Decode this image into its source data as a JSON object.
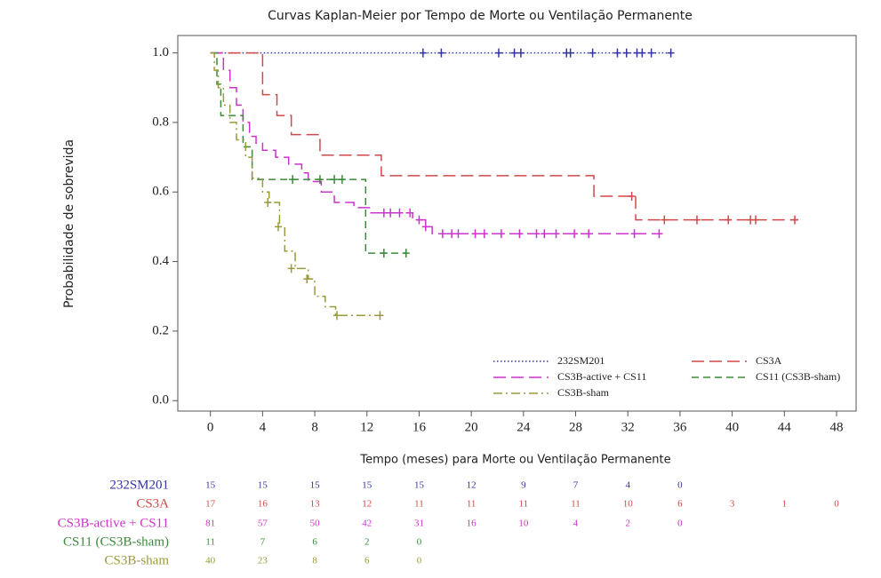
{
  "chart_data": {
    "type": "step",
    "title": "Curvas Kaplan-Meier por Tempo de Morte ou Ventilação Permanente",
    "x_label": "Tempo (meses) para Morte ou Ventilação Permanente",
    "y_label": "Probabilidade de sobrevida",
    "xlim": [
      -2.5,
      49.5
    ],
    "ylim": [
      -0.03,
      1.05
    ],
    "xticks": [
      0,
      4,
      8,
      12,
      16,
      20,
      24,
      28,
      32,
      36,
      40,
      44,
      48
    ],
    "yticks": [
      {
        "value": 0,
        "label": "0.0"
      },
      0.2,
      0.4,
      0.6,
      0.8,
      {
        "value": 1,
        "label": "1.0"
      }
    ],
    "series": [
      {
        "name": "232SM201",
        "color": "#3434a0",
        "style": "dotted",
        "x": [
          0,
          35.3
        ],
        "values": [
          1,
          1
        ],
        "censored_x": [
          16.3,
          17.7,
          22.1,
          23.3,
          23.8,
          27.3,
          27.6,
          29.3,
          31.2,
          31.9,
          32.7,
          33.1,
          33.8,
          35.3
        ],
        "censored_y": [
          1,
          1,
          1,
          1,
          1,
          1,
          1,
          1,
          1,
          1,
          1,
          1,
          1,
          1
        ],
        "at_risk": [
          15,
          15,
          15,
          15,
          15,
          12,
          9,
          7,
          4,
          0
        ]
      },
      {
        "name": "CS3A",
        "color": "#d04848",
        "style": "longdash",
        "x": [
          0,
          4,
          5.1,
          6.2,
          8.4,
          13.1,
          29.4,
          32.6,
          45
        ],
        "values": [
          1,
          0.88,
          0.82,
          0.765,
          0.706,
          0.647,
          0.588,
          0.52,
          0.52
        ],
        "censored_x": [
          32.3,
          34.8,
          37.3,
          39.7,
          41.4,
          41.8,
          44.8
        ],
        "censored_y": [
          0.588,
          0.52,
          0.52,
          0.52,
          0.52,
          0.52,
          0.52
        ],
        "at_risk": [
          17,
          16,
          13,
          12,
          11,
          11,
          11,
          11,
          10,
          6,
          3,
          1,
          0
        ]
      },
      {
        "name": "CS3B-active + CS11",
        "color": "#cc33cc",
        "style": "longdash",
        "x": [
          0,
          1,
          1.5,
          2,
          2.5,
          3,
          3.5,
          4,
          5,
          6,
          7,
          7.5,
          8.5,
          9.5,
          11,
          12.3,
          15.5,
          16.5,
          17,
          34.4
        ],
        "values": [
          1,
          0.95,
          0.9,
          0.85,
          0.8,
          0.76,
          0.74,
          0.72,
          0.7,
          0.68,
          0.655,
          0.63,
          0.6,
          0.57,
          0.555,
          0.54,
          0.52,
          0.5,
          0.48,
          0.48
        ],
        "censored_x": [
          13.3,
          13.8,
          14.5,
          15.3,
          16,
          16.5,
          17.8,
          18.5,
          19,
          20.3,
          21,
          22.3,
          23.7,
          25,
          25.6,
          26.5,
          27.9,
          29,
          32.5,
          34.4
        ],
        "censored_y": [
          0.54,
          0.54,
          0.54,
          0.54,
          0.52,
          0.5,
          0.48,
          0.48,
          0.48,
          0.48,
          0.48,
          0.48,
          0.48,
          0.48,
          0.48,
          0.48,
          0.48,
          0.48,
          0.48,
          0.48
        ],
        "at_risk": [
          81,
          57,
          50,
          42,
          31,
          16,
          10,
          4,
          2,
          0
        ]
      },
      {
        "name": "CS11 (CS3B-sham)",
        "color": "#3a8a3a",
        "style": "dashed",
        "x": [
          0,
          0.5,
          0.8,
          2.5,
          3.2,
          11.9,
          15
        ],
        "values": [
          1,
          0.91,
          0.82,
          0.73,
          0.636,
          0.424,
          0.424
        ],
        "censored_x": [
          6.3,
          8.4,
          9.5,
          10.1,
          13.3,
          15
        ],
        "censored_y": [
          0.636,
          0.636,
          0.636,
          0.636,
          0.424,
          0.424
        ],
        "at_risk": [
          11,
          7,
          6,
          2,
          0
        ]
      },
      {
        "name": "CS3B-sham",
        "color": "#9a9a3a",
        "style": "dashdot",
        "x": [
          0,
          0.3,
          0.6,
          1,
          1.5,
          2,
          2.7,
          3.2,
          4,
          4.5,
          5.3,
          5.7,
          6.5,
          7.5,
          8,
          8.8,
          9.6,
          13.1
        ],
        "values": [
          1,
          0.95,
          0.9,
          0.85,
          0.8,
          0.75,
          0.7,
          0.64,
          0.6,
          0.57,
          0.5,
          0.43,
          0.38,
          0.35,
          0.3,
          0.27,
          0.245,
          0.245
        ],
        "censored_x": [
          4.4,
          5.2,
          6.2,
          7.4,
          9.7,
          13
        ],
        "censored_y": [
          0.57,
          0.5,
          0.38,
          0.35,
          0.245,
          0.245
        ],
        "at_risk": [
          40,
          23,
          8,
          6,
          0
        ]
      }
    ]
  }
}
